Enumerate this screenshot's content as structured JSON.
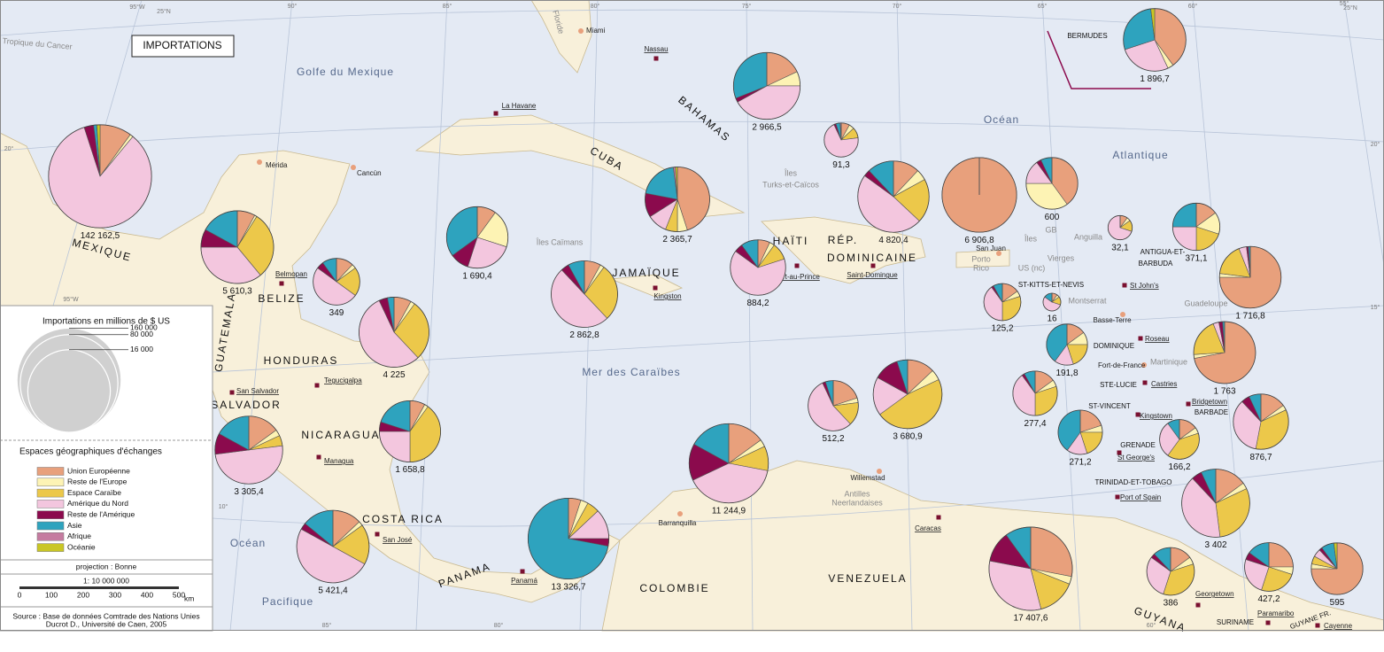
{
  "title": "IMPORTATIONS",
  "size_legend": {
    "title": "Importations en millions de $ US",
    "sizes": [
      {
        "value": 160000,
        "label": "160 000"
      },
      {
        "value": 80000,
        "label": "80 000"
      },
      {
        "value": 16000,
        "label": "16 000"
      }
    ]
  },
  "category_legend": {
    "title": "Espaces géographiques d'échanges",
    "categories": [
      {
        "name": "Union Européenne",
        "color": "#e8a07c"
      },
      {
        "name": "Reste de l'Europe",
        "color": "#fdf3b4"
      },
      {
        "name": "Espace Caraïbe",
        "color": "#ecc84a"
      },
      {
        "name": "Amérique du Nord",
        "color": "#f3c6de"
      },
      {
        "name": "Reste de l'Amérique",
        "color": "#8b0a4d"
      },
      {
        "name": "Asie",
        "color": "#2ea3be"
      },
      {
        "name": "Afrique",
        "color": "#c57ba0"
      },
      {
        "name": "Océanie",
        "color": "#c9c624"
      }
    ]
  },
  "projection": "projection : Bonne",
  "scale": "1: 10 000 000",
  "scale_ticks": [
    "0",
    "100",
    "200",
    "300",
    "400",
    "500"
  ],
  "scale_unit": "km",
  "source": [
    "Source : Base de données Comtrade des Nations Unies",
    "Ducrot D., Université de Caen, 2005"
  ],
  "places": [
    "Golfe du Mexique",
    "Océan",
    "Atlantique",
    "Mer des Caraïbes",
    "Océan",
    "Pacifique",
    "MEXIQUE",
    "BAHAMAS",
    "CUBA",
    "GUATEMALA",
    "BELIZE",
    "HONDURAS",
    "SALVADOR",
    "NICARAGUA",
    "COSTA RICA",
    "PANAMA",
    "COLOMBIE",
    "VENEZUELA",
    "GUYANA",
    "SURINAME",
    "GUYANE FR.",
    "JAMAÏQUE",
    "HAÏTI",
    "RÉP.",
    "DOMINICAINE",
    "Îles Caïmans",
    "Îles",
    "Turks-et-Caïcos",
    "Porto",
    "Rico",
    "Îles",
    "Vierges",
    "GB",
    "US (nc)",
    "Anguilla",
    "ANTIGUA-ET-",
    "BARBUDA",
    "ST-KITTS-ET-NEVIS",
    "Montserrat",
    "Guadeloupe",
    "DOMINIQUE",
    "Martinique",
    "STE-LUCIE",
    "ST-VINCENT",
    "BARBADE",
    "GRENADE",
    "TRINIDAD-ET-TOBAGO",
    "BERMUDES",
    "Antilles",
    "Neerlandaises",
    "Floride",
    "Tropique du Cancer"
  ],
  "cities": [
    "Miami",
    "Nassau",
    "La Havane",
    "Mérida",
    "Cancùn",
    "Belmopan",
    "Kingston",
    "Port-au-Prince",
    "Saint-Domingue",
    "San Juan",
    "St John's",
    "Basse-Terre",
    "Roseau",
    "Fort-de-France",
    "Castries",
    "Bridgetown",
    "Kingstown",
    "St George's",
    "Port of Spain",
    "Caracas",
    "Willemstad",
    "Barranquilla",
    "Panamá",
    "San José",
    "Managua",
    "Tegucigalpa",
    "San Salvador",
    "Georgetown",
    "Paramaribo",
    "Cayenne"
  ],
  "graticule": [
    "95°W",
    "25°N",
    "90°",
    "85°",
    "80°",
    "75°",
    "70°",
    "65°",
    "60°",
    "25°N",
    "55°",
    "20°",
    "20°",
    "15°",
    "10°",
    "95°W",
    "85°",
    "80°",
    "60°"
  ],
  "pies": [
    {
      "value": 142162.5,
      "label": "142 162,5",
      "shares": [
        10,
        1,
        0,
        84,
        3,
        1,
        0,
        1
      ]
    },
    {
      "value": 5610.3,
      "label": "5 610,3",
      "shares": [
        8,
        1,
        30,
        36,
        8,
        17,
        0,
        0
      ]
    },
    {
      "value": 349,
      "label": "349",
      "shares": [
        12,
        3,
        20,
        50,
        5,
        10,
        0,
        0
      ]
    },
    {
      "value": 4225,
      "label": "4 225",
      "shares": [
        8,
        2,
        28,
        55,
        4,
        3,
        0,
        0
      ]
    },
    {
      "value": 3305.4,
      "label": "3 305,4",
      "shares": [
        15,
        3,
        5,
        50,
        10,
        17,
        0,
        0
      ]
    },
    {
      "value": 1658.8,
      "label": "1 658,8",
      "shares": [
        8,
        2,
        40,
        25,
        5,
        20,
        0,
        0
      ]
    },
    {
      "value": 5421.4,
      "label": "5 421,4",
      "shares": [
        13,
        2,
        18,
        50,
        3,
        14,
        0,
        0
      ]
    },
    {
      "value": 13326.7,
      "label": "13 326,7",
      "shares": [
        5,
        3,
        5,
        12,
        3,
        72,
        0,
        0
      ]
    },
    {
      "value": 11244.9,
      "label": "11 244,9",
      "shares": [
        15,
        3,
        10,
        40,
        15,
        17,
        0,
        0
      ]
    },
    {
      "value": 2862.8,
      "label": "2 862,8",
      "shares": [
        8,
        2,
        28,
        50,
        4,
        8,
        0,
        0
      ]
    },
    {
      "value": 1690.4,
      "label": "1 690,4",
      "shares": [
        10,
        20,
        0,
        25,
        10,
        35,
        0,
        0
      ]
    },
    {
      "value": 2365.7,
      "label": "2 365,7",
      "shares": [
        45,
        5,
        6,
        10,
        12,
        20,
        1,
        1
      ]
    },
    {
      "value": 2966.5,
      "label": "2 966,5",
      "shares": [
        18,
        7,
        0,
        42,
        2,
        31,
        0,
        0
      ]
    },
    {
      "value": 91.3,
      "label": "91,3",
      "shares": [
        8,
        5,
        10,
        70,
        2,
        4,
        1,
        0
      ]
    },
    {
      "value": 884.2,
      "label": "884,2",
      "shares": [
        7,
        3,
        10,
        65,
        5,
        10,
        0,
        0
      ]
    },
    {
      "value": 4820.4,
      "label": "4 820,4",
      "shares": [
        12,
        5,
        20,
        48,
        3,
        12,
        0,
        0
      ]
    },
    {
      "value": 6906.8,
      "label": "6 906,8",
      "shares": [
        100,
        0,
        0,
        0,
        0,
        0,
        0,
        0
      ]
    },
    {
      "value": 600,
      "label": "600",
      "shares": [
        40,
        35,
        0,
        15,
        3,
        7,
        0,
        0
      ]
    },
    {
      "value": 32.1,
      "label": "32,1",
      "shares": [
        10,
        5,
        15,
        70,
        0,
        0,
        0,
        0
      ]
    },
    {
      "value": 371.1,
      "label": "371,1",
      "shares": [
        15,
        15,
        20,
        25,
        0,
        25,
        0,
        0
      ]
    },
    {
      "value": 1896.7,
      "label": "1 896,7",
      "shares": [
        40,
        3,
        0,
        27,
        0,
        28,
        0,
        2
      ]
    },
    {
      "value": 1716.8,
      "label": "1 716,8",
      "shares": [
        75,
        2,
        17,
        4,
        1,
        1,
        0,
        0
      ]
    },
    {
      "value": 16,
      "label": "16",
      "shares": [
        10,
        5,
        15,
        55,
        0,
        15,
        0,
        0
      ]
    },
    {
      "value": 125.2,
      "label": "125,2",
      "shares": [
        15,
        5,
        30,
        40,
        2,
        8,
        0,
        0
      ]
    },
    {
      "value": 1763,
      "label": "1 763",
      "shares": [
        72,
        2,
        20,
        3,
        2,
        1,
        0,
        0
      ]
    },
    {
      "value": 191.8,
      "label": "191,8",
      "shares": [
        15,
        10,
        20,
        15,
        0,
        40,
        0,
        0
      ]
    },
    {
      "value": 512.2,
      "label": "512,2",
      "shares": [
        20,
        3,
        15,
        55,
        2,
        5,
        0,
        0
      ]
    },
    {
      "value": 3680.9,
      "label": "3 680,9",
      "shares": [
        13,
        5,
        47,
        18,
        12,
        5,
        0,
        0
      ]
    },
    {
      "value": 277.4,
      "label": "277,4",
      "shares": [
        15,
        5,
        30,
        40,
        2,
        8,
        0,
        0
      ]
    },
    {
      "value": 271.2,
      "label": "271,2",
      "shares": [
        20,
        5,
        20,
        15,
        0,
        40,
        0,
        0
      ]
    },
    {
      "value": 166.2,
      "label": "166,2",
      "shares": [
        15,
        5,
        40,
        30,
        0,
        10,
        0,
        0
      ]
    },
    {
      "value": 876.7,
      "label": "876,7",
      "shares": [
        15,
        3,
        35,
        35,
        5,
        7,
        0,
        0
      ]
    },
    {
      "value": 3402,
      "label": "3 402",
      "shares": [
        15,
        3,
        30,
        40,
        5,
        7,
        0,
        0
      ]
    },
    {
      "value": 17407.6,
      "label": "17 407,6",
      "shares": [
        28,
        3,
        15,
        32,
        12,
        10,
        0,
        0
      ]
    },
    {
      "value": 386,
      "label": "386",
      "shares": [
        15,
        5,
        35,
        30,
        3,
        12,
        0,
        0
      ]
    },
    {
      "value": 427.2,
      "label": "427,2",
      "shares": [
        25,
        5,
        25,
        25,
        5,
        15,
        0,
        0
      ]
    },
    {
      "value": 595,
      "label": "595",
      "shares": [
        75,
        3,
        5,
        5,
        2,
        8,
        0,
        2
      ]
    }
  ]
}
